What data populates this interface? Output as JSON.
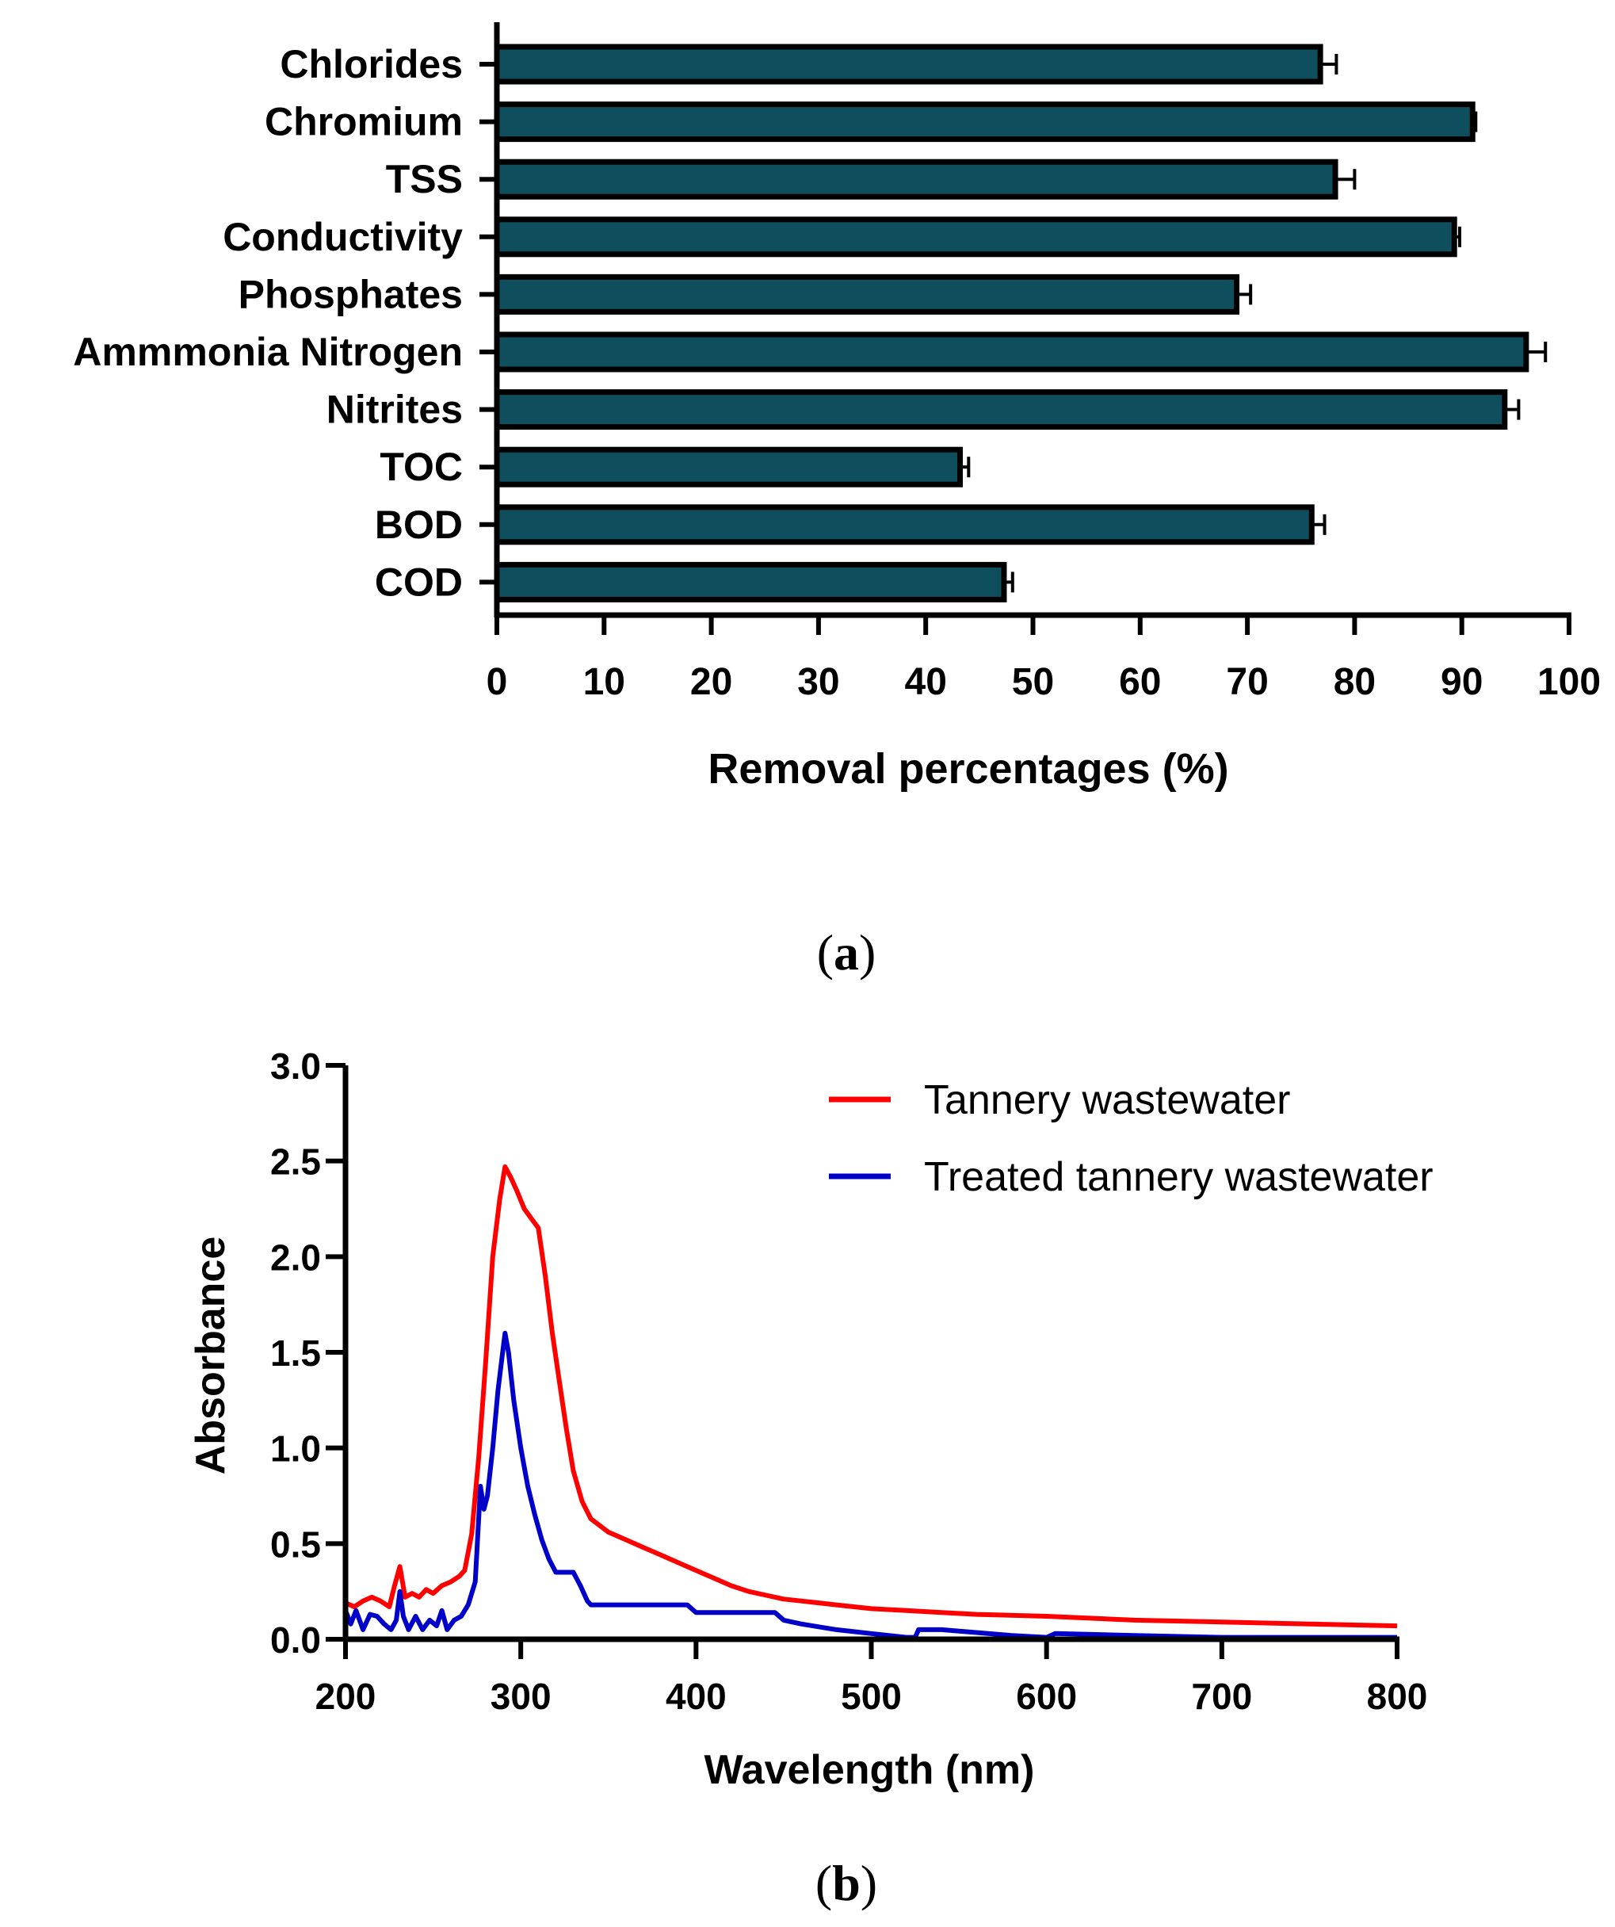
{
  "chart_data": [
    {
      "type": "bar",
      "orientation": "horizontal",
      "panel_label": "(a)",
      "panel_letter": "a",
      "xlabel": "Removal percentages (%)",
      "xlim": [
        0,
        100
      ],
      "xticks": [
        0,
        10,
        20,
        30,
        40,
        50,
        60,
        70,
        80,
        90,
        100
      ],
      "bar_color": "#0f4e5c",
      "categories": [
        "Chlorides",
        "Chromium",
        "TSS",
        "Conductivity",
        "Phosphates",
        "Ammmonia Nitrogen",
        "Nitrites",
        "TOC",
        "BOD",
        "COD"
      ],
      "values": [
        76.8,
        91.0,
        78.2,
        89.3,
        69.0,
        96.0,
        94.0,
        43.2,
        76.0,
        47.3
      ],
      "errors": [
        1.5,
        0.3,
        1.8,
        0.5,
        1.3,
        1.8,
        1.3,
        0.8,
        1.2,
        0.8
      ]
    },
    {
      "type": "line",
      "panel_label": "(b)",
      "panel_letter": "b",
      "xlabel": "Wavelength (nm)",
      "ylabel": "Absorbance",
      "xlim": [
        200,
        800
      ],
      "ylim": [
        0,
        3.0
      ],
      "xticks": [
        200,
        300,
        400,
        500,
        600,
        700,
        800
      ],
      "yticks": [
        "0.0",
        "0.5",
        "1.0",
        "1.5",
        "2.0",
        "2.5",
        "3.0"
      ],
      "legend_position": "top-right",
      "series": [
        {
          "name": "Tannery wastewater",
          "color": "#ff0000",
          "x": [
            200,
            205,
            210,
            215,
            220,
            225,
            228,
            231,
            234,
            238,
            242,
            246,
            250,
            255,
            260,
            265,
            268,
            272,
            276,
            280,
            284,
            288,
            291,
            294,
            298,
            302,
            306,
            310,
            314,
            318,
            322,
            326,
            330,
            335,
            340,
            350,
            360,
            370,
            380,
            390,
            400,
            410,
            420,
            430,
            440,
            450,
            460,
            470,
            480,
            500,
            520,
            540,
            560,
            600,
            650,
            700,
            750,
            800
          ],
          "y": [
            0.19,
            0.17,
            0.2,
            0.22,
            0.2,
            0.17,
            0.28,
            0.38,
            0.22,
            0.24,
            0.22,
            0.26,
            0.24,
            0.28,
            0.3,
            0.33,
            0.36,
            0.55,
            0.95,
            1.45,
            2.0,
            2.3,
            2.47,
            2.42,
            2.34,
            2.25,
            2.2,
            2.15,
            1.9,
            1.6,
            1.35,
            1.1,
            0.88,
            0.72,
            0.63,
            0.56,
            0.52,
            0.48,
            0.44,
            0.4,
            0.36,
            0.32,
            0.28,
            0.25,
            0.23,
            0.21,
            0.2,
            0.19,
            0.18,
            0.16,
            0.15,
            0.14,
            0.13,
            0.12,
            0.1,
            0.09,
            0.08,
            0.07
          ]
        },
        {
          "name": "Treated tannery wastewater",
          "color": "#0000c8",
          "x": [
            200,
            203,
            206,
            210,
            214,
            218,
            222,
            226,
            229,
            231,
            233,
            236,
            240,
            244,
            248,
            252,
            255,
            258,
            262,
            266,
            270,
            274,
            277,
            279,
            281,
            284,
            287,
            289,
            291,
            293,
            296,
            300,
            304,
            308,
            312,
            316,
            320,
            324,
            330,
            334,
            338,
            340,
            350,
            370,
            395,
            400,
            420,
            440,
            445,
            450,
            460,
            480,
            500,
            520,
            525,
            527,
            540,
            580,
            600,
            605,
            650,
            700,
            750,
            800
          ],
          "y": [
            0.15,
            0.08,
            0.15,
            0.05,
            0.13,
            0.12,
            0.08,
            0.05,
            0.1,
            0.25,
            0.12,
            0.05,
            0.12,
            0.05,
            0.1,
            0.07,
            0.15,
            0.05,
            0.1,
            0.12,
            0.18,
            0.3,
            0.8,
            0.68,
            0.75,
            1.0,
            1.3,
            1.45,
            1.6,
            1.5,
            1.25,
            1.0,
            0.8,
            0.65,
            0.52,
            0.42,
            0.35,
            0.35,
            0.35,
            0.28,
            0.2,
            0.18,
            0.18,
            0.18,
            0.18,
            0.14,
            0.14,
            0.14,
            0.14,
            0.1,
            0.08,
            0.05,
            0.03,
            0.01,
            0.01,
            0.05,
            0.05,
            0.02,
            0.01,
            0.03,
            0.02,
            0.01,
            0.01,
            0.01
          ]
        }
      ]
    }
  ]
}
